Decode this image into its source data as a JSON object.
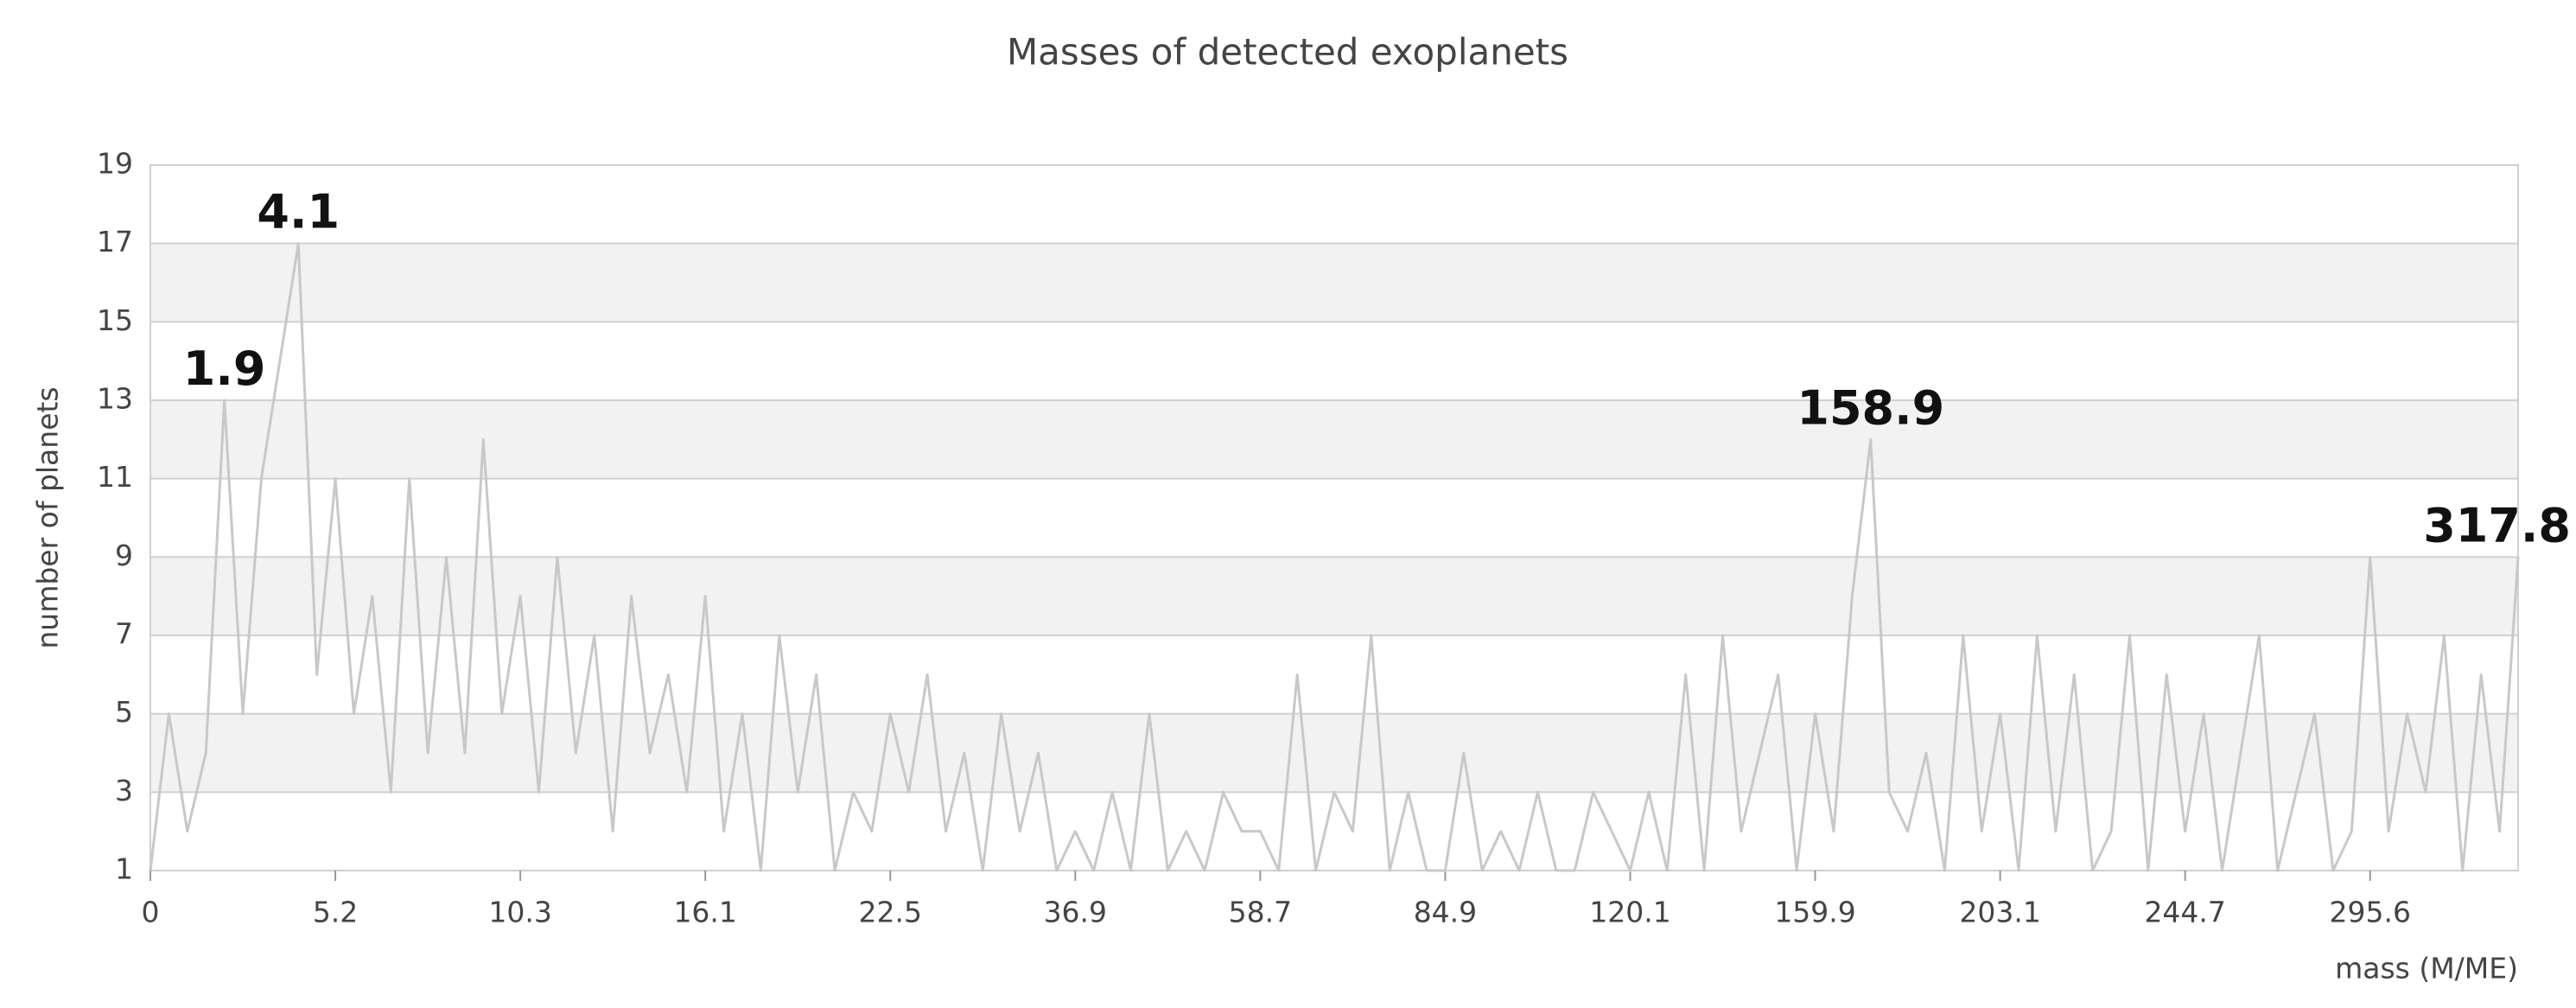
{
  "chart_data": {
    "type": "line",
    "title": "Masses of detected exoplanets",
    "x_label": "mass (M/ME)",
    "y_label": "number of planets",
    "categories": [
      "0",
      null,
      null,
      null,
      null,
      null,
      null,
      null,
      null,
      null,
      "5.2",
      null,
      null,
      null,
      null,
      null,
      null,
      null,
      null,
      null,
      "10.3",
      null,
      null,
      null,
      null,
      null,
      null,
      null,
      null,
      null,
      "16.1",
      null,
      null,
      null,
      null,
      null,
      null,
      null,
      null,
      null,
      "22.5",
      null,
      null,
      null,
      null,
      null,
      null,
      null,
      null,
      null,
      "36.9",
      null,
      null,
      null,
      null,
      null,
      null,
      null,
      null,
      null,
      "58.7",
      null,
      null,
      null,
      null,
      null,
      null,
      null,
      null,
      null,
      "84.9",
      null,
      null,
      null,
      null,
      null,
      null,
      null,
      null,
      null,
      "120.1",
      null,
      null,
      null,
      null,
      null,
      null,
      null,
      null,
      null,
      "159.9",
      null,
      null,
      null,
      null,
      null,
      null,
      null,
      null,
      null,
      "203.1",
      null,
      null,
      null,
      null,
      null,
      null,
      null,
      null,
      null,
      "244.7",
      null,
      null,
      null,
      null,
      null,
      null,
      null,
      null,
      null,
      "295.6",
      null,
      null,
      null,
      null,
      null,
      null,
      null,
      null
    ],
    "values": [
      1,
      5,
      2,
      4,
      13,
      5,
      11,
      14,
      17,
      6,
      11,
      5,
      8,
      3,
      11,
      4,
      9,
      4,
      12,
      5,
      8,
      3,
      9,
      4,
      7,
      2,
      8,
      4,
      6,
      3,
      8,
      2,
      5,
      1,
      7,
      3,
      6,
      1,
      3,
      2,
      5,
      3,
      6,
      2,
      4,
      1,
      5,
      2,
      4,
      1,
      2,
      1,
      3,
      1,
      5,
      1,
      2,
      1,
      3,
      2,
      2,
      1,
      6,
      1,
      3,
      2,
      7,
      1,
      3,
      1,
      1,
      4,
      1,
      2,
      1,
      3,
      1,
      1,
      3,
      2,
      1,
      3,
      1,
      6,
      1,
      7,
      2,
      4,
      6,
      1,
      5,
      2,
      8,
      12,
      3,
      2,
      4,
      1,
      7,
      2,
      5,
      1,
      7,
      2,
      6,
      1,
      2,
      7,
      1,
      6,
      2,
      5,
      1,
      4,
      7,
      1,
      3,
      5,
      1,
      2,
      9,
      2,
      5,
      3,
      7,
      1,
      6,
      2,
      9
    ],
    "color": "#c8c8c8",
    "annotations": [
      {
        "text": "1.9",
        "index": 4
      },
      {
        "text": "4.1",
        "index": 8
      },
      {
        "text": "158.9",
        "index": 93
      },
      {
        "text": "317.8",
        "index": 128
      }
    ],
    "ylim": [
      1,
      19
    ],
    "yticks": [
      1,
      3,
      5,
      7,
      9,
      11,
      13,
      15,
      17,
      19
    ],
    "grid": true,
    "band_color": "#f2f2f2"
  }
}
